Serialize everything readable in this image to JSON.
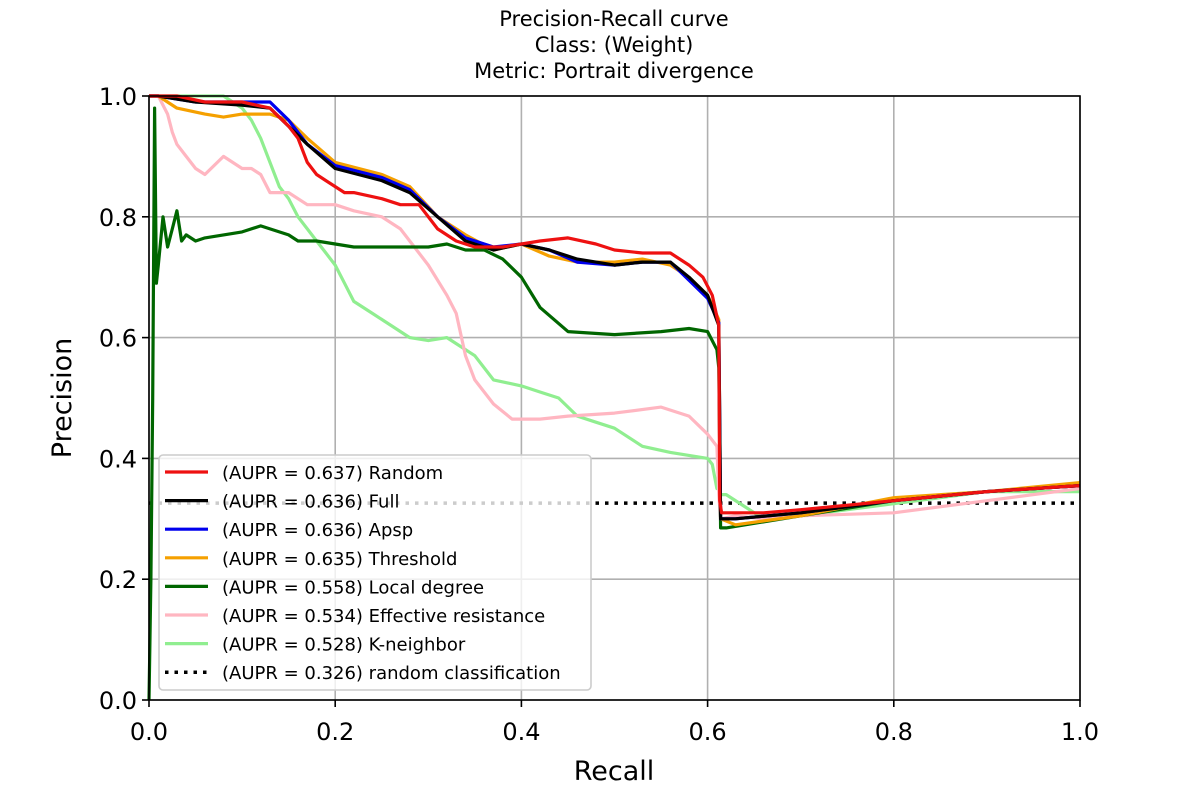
{
  "chart_data": {
    "type": "line",
    "title": [
      "Precision-Recall curve",
      "Class: (Weight)",
      "Metric: Portrait divergence"
    ],
    "xlabel": "Recall",
    "ylabel": "Precision",
    "xlim": [
      0.0,
      1.0
    ],
    "ylim": [
      0.0,
      1.0
    ],
    "xticks": [
      "0.0",
      "0.2",
      "0.4",
      "0.6",
      "0.8",
      "1.0"
    ],
    "yticks": [
      "0.0",
      "0.2",
      "0.4",
      "0.6",
      "0.8",
      "1.0"
    ],
    "grid": true,
    "legend_position": "lower-left",
    "series": [
      {
        "name": "(AUPR = 0.637) Random",
        "color": "#ee1111",
        "style": "solid",
        "x": [
          0.0,
          0.005,
          0.01,
          0.03,
          0.06,
          0.1,
          0.13,
          0.15,
          0.16,
          0.17,
          0.18,
          0.19,
          0.2,
          0.21,
          0.22,
          0.25,
          0.27,
          0.29,
          0.31,
          0.33,
          0.35,
          0.38,
          0.4,
          0.42,
          0.45,
          0.48,
          0.5,
          0.53,
          0.56,
          0.58,
          0.595,
          0.605,
          0.612,
          0.613,
          0.615,
          0.63,
          0.66,
          0.7,
          0.8,
          0.9,
          1.0
        ],
        "y": [
          1.0,
          1.0,
          1.0,
          1.0,
          0.99,
          0.99,
          0.98,
          0.95,
          0.93,
          0.89,
          0.87,
          0.86,
          0.85,
          0.84,
          0.84,
          0.83,
          0.82,
          0.82,
          0.78,
          0.76,
          0.75,
          0.75,
          0.755,
          0.76,
          0.765,
          0.755,
          0.745,
          0.74,
          0.74,
          0.72,
          0.7,
          0.67,
          0.62,
          0.33,
          0.31,
          0.31,
          0.31,
          0.315,
          0.33,
          0.345,
          0.355
        ]
      },
      {
        "name": "(AUPR = 0.636) Full",
        "color": "#000000",
        "style": "solid",
        "x": [
          0.0,
          0.01,
          0.05,
          0.1,
          0.13,
          0.15,
          0.17,
          0.2,
          0.25,
          0.28,
          0.31,
          0.34,
          0.37,
          0.4,
          0.43,
          0.46,
          0.5,
          0.53,
          0.56,
          0.58,
          0.6,
          0.612,
          0.614,
          0.63,
          0.7,
          0.8,
          0.9,
          1.0
        ],
        "y": [
          1.0,
          1.0,
          0.99,
          0.985,
          0.98,
          0.95,
          0.92,
          0.88,
          0.86,
          0.84,
          0.8,
          0.76,
          0.745,
          0.755,
          0.745,
          0.73,
          0.72,
          0.725,
          0.725,
          0.7,
          0.67,
          0.62,
          0.3,
          0.3,
          0.31,
          0.33,
          0.345,
          0.355
        ]
      },
      {
        "name": "(AUPR = 0.636) Apsp",
        "color": "#0000ee",
        "style": "solid",
        "x": [
          0.0,
          0.01,
          0.05,
          0.1,
          0.13,
          0.15,
          0.17,
          0.2,
          0.25,
          0.28,
          0.31,
          0.34,
          0.37,
          0.4,
          0.43,
          0.46,
          0.5,
          0.53,
          0.56,
          0.58,
          0.6,
          0.612,
          0.614,
          0.63,
          0.7,
          0.8,
          0.9,
          1.0
        ],
        "y": [
          1.0,
          1.0,
          0.99,
          0.99,
          0.99,
          0.96,
          0.92,
          0.885,
          0.865,
          0.845,
          0.8,
          0.765,
          0.75,
          0.755,
          0.745,
          0.725,
          0.72,
          0.725,
          0.725,
          0.695,
          0.665,
          0.625,
          0.3,
          0.3,
          0.31,
          0.33,
          0.345,
          0.355
        ]
      },
      {
        "name": "(AUPR = 0.635) Threshold",
        "color": "#f5a000",
        "style": "solid",
        "x": [
          0.0,
          0.01,
          0.03,
          0.06,
          0.08,
          0.1,
          0.13,
          0.15,
          0.17,
          0.2,
          0.25,
          0.28,
          0.31,
          0.34,
          0.37,
          0.4,
          0.43,
          0.46,
          0.5,
          0.53,
          0.56,
          0.58,
          0.6,
          0.612,
          0.614,
          0.63,
          0.7,
          0.8,
          0.9,
          1.0
        ],
        "y": [
          1.0,
          1.0,
          0.98,
          0.97,
          0.965,
          0.97,
          0.97,
          0.96,
          0.93,
          0.89,
          0.87,
          0.85,
          0.8,
          0.77,
          0.745,
          0.755,
          0.735,
          0.725,
          0.725,
          0.73,
          0.72,
          0.7,
          0.67,
          0.63,
          0.3,
          0.29,
          0.305,
          0.335,
          0.345,
          0.36
        ]
      },
      {
        "name": "(AUPR = 0.558) Local degree",
        "color": "#006600",
        "style": "solid",
        "x": [
          0.0,
          0.002,
          0.004,
          0.006,
          0.008,
          0.01,
          0.015,
          0.02,
          0.025,
          0.03,
          0.035,
          0.04,
          0.05,
          0.06,
          0.08,
          0.1,
          0.12,
          0.14,
          0.15,
          0.16,
          0.18,
          0.2,
          0.22,
          0.25,
          0.28,
          0.3,
          0.32,
          0.34,
          0.36,
          0.38,
          0.4,
          0.42,
          0.45,
          0.5,
          0.55,
          0.58,
          0.6,
          0.61,
          0.612,
          0.614,
          0.62,
          0.7,
          0.8,
          0.9,
          1.0
        ],
        "y": [
          0.0,
          0.2,
          0.5,
          0.98,
          0.69,
          0.72,
          0.8,
          0.75,
          0.78,
          0.81,
          0.76,
          0.77,
          0.76,
          0.765,
          0.77,
          0.775,
          0.785,
          0.775,
          0.77,
          0.76,
          0.76,
          0.755,
          0.75,
          0.75,
          0.75,
          0.75,
          0.755,
          0.745,
          0.745,
          0.73,
          0.7,
          0.65,
          0.61,
          0.605,
          0.61,
          0.615,
          0.61,
          0.58,
          0.55,
          0.285,
          0.285,
          0.305,
          0.33,
          0.345,
          0.355
        ]
      },
      {
        "name": "(AUPR = 0.534) Effective resistance",
        "color": "#ffb6c1",
        "style": "solid",
        "x": [
          0.0,
          0.01,
          0.02,
          0.025,
          0.03,
          0.04,
          0.05,
          0.06,
          0.08,
          0.1,
          0.11,
          0.12,
          0.13,
          0.15,
          0.17,
          0.2,
          0.22,
          0.25,
          0.27,
          0.3,
          0.32,
          0.33,
          0.34,
          0.35,
          0.37,
          0.39,
          0.42,
          0.45,
          0.5,
          0.55,
          0.58,
          0.6,
          0.61,
          0.612,
          0.614,
          0.63,
          0.66,
          0.7,
          0.8,
          0.9,
          1.0
        ],
        "y": [
          1.0,
          1.0,
          0.97,
          0.94,
          0.92,
          0.9,
          0.88,
          0.87,
          0.9,
          0.88,
          0.88,
          0.87,
          0.84,
          0.84,
          0.82,
          0.82,
          0.81,
          0.8,
          0.78,
          0.72,
          0.67,
          0.64,
          0.57,
          0.53,
          0.49,
          0.465,
          0.465,
          0.47,
          0.475,
          0.485,
          0.47,
          0.44,
          0.42,
          0.34,
          0.3,
          0.305,
          0.3,
          0.305,
          0.31,
          0.33,
          0.35
        ]
      },
      {
        "name": "(AUPR = 0.528) K-neighbor",
        "color": "#90ee90",
        "style": "solid",
        "x": [
          0.0,
          0.01,
          0.05,
          0.08,
          0.1,
          0.11,
          0.12,
          0.13,
          0.14,
          0.15,
          0.16,
          0.17,
          0.18,
          0.19,
          0.2,
          0.21,
          0.22,
          0.24,
          0.26,
          0.28,
          0.3,
          0.32,
          0.33,
          0.35,
          0.37,
          0.4,
          0.42,
          0.44,
          0.46,
          0.48,
          0.5,
          0.53,
          0.56,
          0.6,
          0.605,
          0.61,
          0.612,
          0.614,
          0.62,
          0.66,
          0.7,
          0.75,
          0.8,
          0.85,
          0.9,
          0.95,
          1.0
        ],
        "y": [
          1.0,
          1.0,
          1.0,
          1.0,
          0.98,
          0.96,
          0.93,
          0.89,
          0.85,
          0.83,
          0.8,
          0.78,
          0.76,
          0.74,
          0.72,
          0.69,
          0.66,
          0.64,
          0.62,
          0.6,
          0.595,
          0.6,
          0.59,
          0.57,
          0.53,
          0.52,
          0.51,
          0.5,
          0.47,
          0.46,
          0.45,
          0.42,
          0.41,
          0.4,
          0.39,
          0.35,
          0.35,
          0.34,
          0.34,
          0.3,
          0.305,
          0.315,
          0.325,
          0.335,
          0.345,
          0.345,
          0.345
        ]
      },
      {
        "name": "(AUPR = 0.326) random classification",
        "color": "#000000",
        "style": "dotted",
        "x": [
          0.0,
          1.0
        ],
        "y": [
          0.326,
          0.326
        ]
      }
    ]
  }
}
